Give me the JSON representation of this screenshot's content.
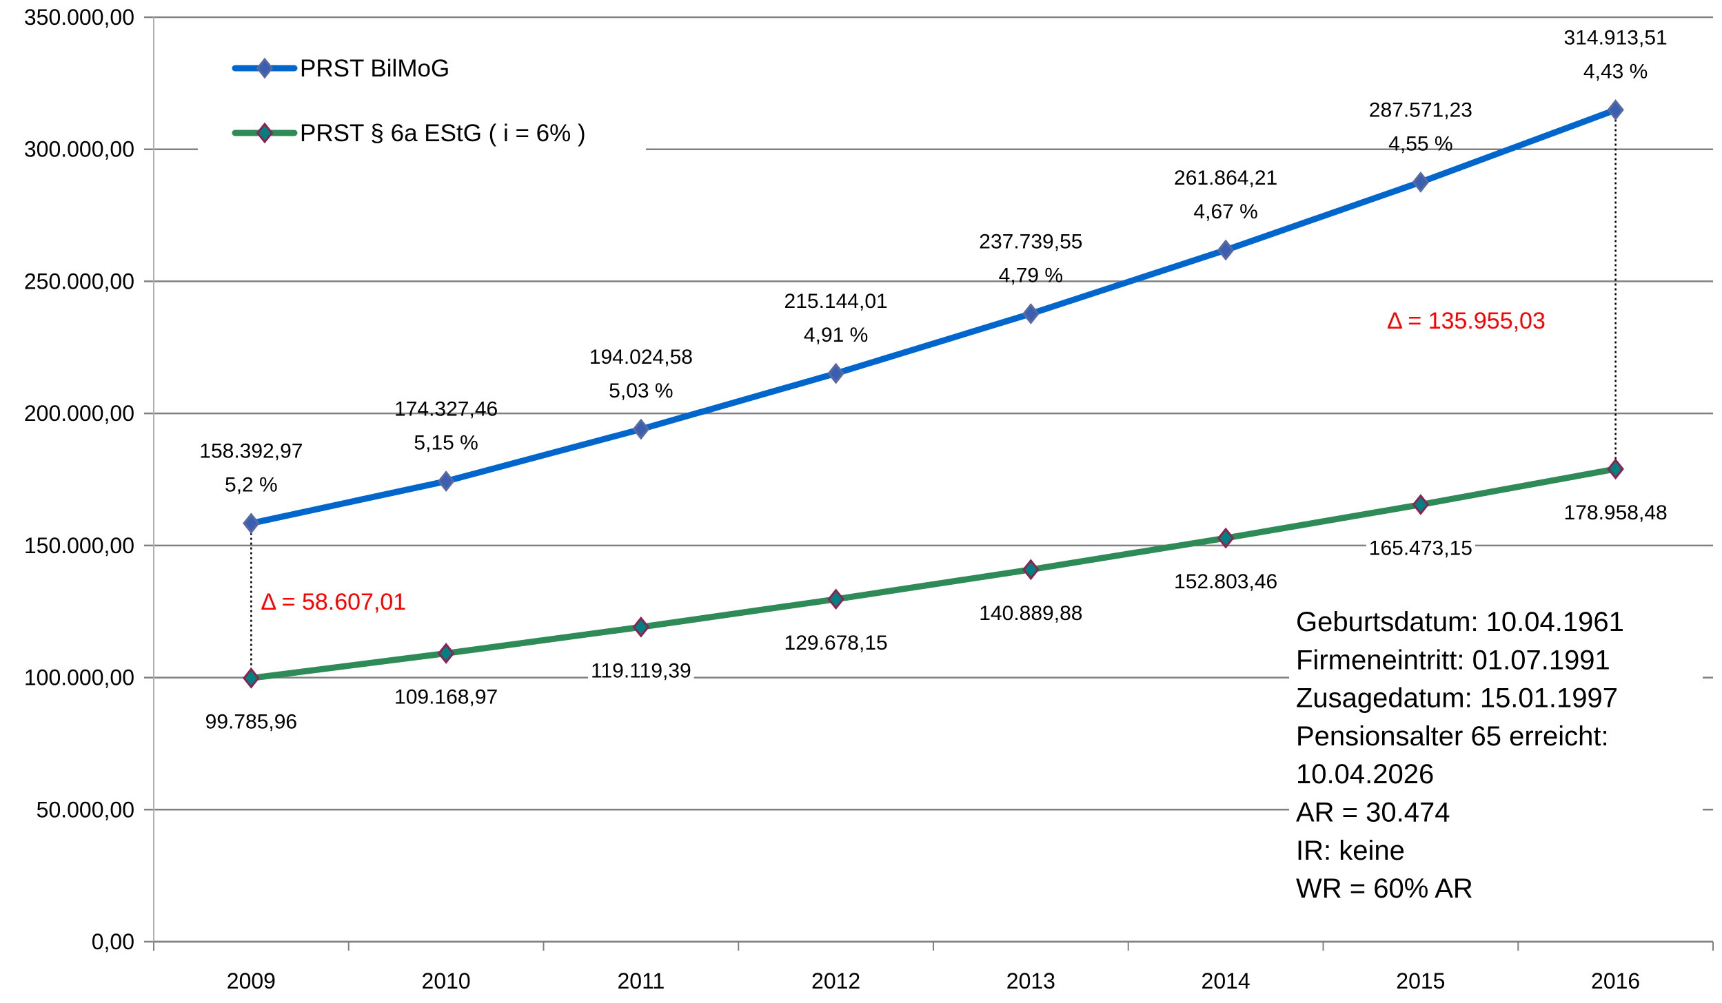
{
  "chart_data": {
    "type": "line",
    "title": "",
    "xlabel": "",
    "ylabel": "",
    "categories": [
      "2009",
      "2010",
      "2011",
      "2012",
      "2013",
      "2014",
      "2015",
      "2016"
    ],
    "ylim": [
      0,
      350000
    ],
    "yticks": [
      0,
      50000,
      100000,
      150000,
      200000,
      250000,
      300000,
      350000
    ],
    "ytick_labels": [
      "0,00",
      "50.000,00",
      "100.000,00",
      "150.000,00",
      "200.000,00",
      "250.000,00",
      "300.000,00",
      "350.000,00"
    ],
    "grid": true,
    "legend_position": "top-left",
    "series": [
      {
        "name": "PRST BilMoG",
        "color": "#0066cc",
        "marker_color": "#3b5fb0",
        "values": [
          158392.97,
          174327.46,
          194024.58,
          215144.01,
          237739.55,
          261864.21,
          287571.23,
          314913.51
        ],
        "value_labels": [
          "158.392,97",
          "174.327,46",
          "194.024,58",
          "215.144,01",
          "237.739,55",
          "261.864,21",
          "287.571,23",
          "314.913,51"
        ],
        "rate_labels": [
          "5,2 %",
          "5,15 %",
          "5,03 %",
          "4,91 %",
          "4,79 %",
          "4,67 %",
          "4,55 %",
          "4,43 %"
        ]
      },
      {
        "name": "PRST § 6a EStG ( i = 6% )",
        "color": "#2e8b57",
        "marker_color": "#008080",
        "marker_border": "#8b2252",
        "values": [
          99785.96,
          109168.97,
          119119.39,
          129678.15,
          140889.88,
          152803.46,
          165473.15,
          178958.48
        ],
        "value_labels": [
          "99.785,96",
          "109.168,97",
          "119.119,39",
          "129.678,15",
          "140.889,88",
          "152.803,46",
          "165.473,15",
          "178.958,48"
        ]
      }
    ],
    "annotations": [
      {
        "text": "Δ = 58.607,01",
        "category": "2009",
        "color": "#ff0000"
      },
      {
        "text": "Δ = 135.955,03",
        "category": "2016",
        "color": "#ff0000"
      }
    ],
    "info_box": [
      "Geburtsdatum: 10.04.1961",
      "Firmeneintritt: 01.07.1991",
      "Zusagedatum: 15.01.1997",
      "Pensionsalter 65 erreicht:",
      "10.04.2026",
      "AR = 30.474",
      "IR: keine",
      "WR = 60% AR"
    ]
  }
}
